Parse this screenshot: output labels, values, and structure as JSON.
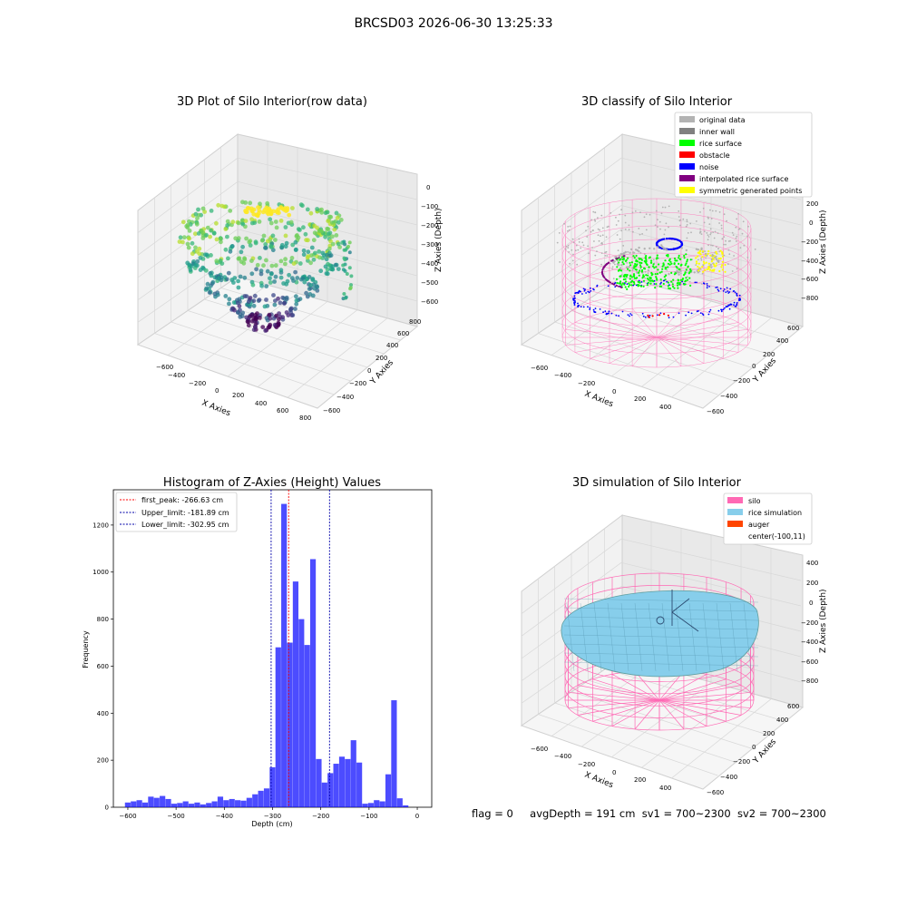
{
  "figure": {
    "suptitle": "BRCSD03 2026-06-30 13:25:33",
    "status": {
      "flag": "flag = 0",
      "avgDepth": "avgDepth = 191 cm",
      "sv1": "sv1 = 700~2300",
      "sv2": "sv2 = 700~2300"
    }
  },
  "colors": {
    "original_data": "#b3b3b3",
    "inner_wall": "#808080",
    "rice_surface": "#00ff00",
    "obstacle": "#ff0000",
    "noise": "#0000ff",
    "interpolated_rice_surface": "#800080",
    "symmetric_generated_points": "#ffff00",
    "silo": "#ff69b4",
    "rice_simulation": "#87ceeb",
    "auger": "#ff4500",
    "hist_bar": "#0000ff",
    "peak_line": "#ff0000",
    "limit_line": "#0000aa"
  },
  "chart_data": [
    {
      "type": "scatter",
      "title": "3D Plot of Silo Interior(row data)",
      "xlabel": "X Axies",
      "ylabel": "Y Axies",
      "zlabel": "Z Axies (Depth)",
      "xticks": [
        "−600",
        "−400",
        "−200",
        "0",
        "200",
        "400",
        "600",
        "800"
      ],
      "yticks": [
        "−600",
        "−400",
        "−200",
        "0",
        "200",
        "400",
        "600",
        "800"
      ],
      "zticks": [
        "0",
        "−100",
        "−200",
        "−300",
        "−400",
        "−500",
        "−600"
      ],
      "colormap": "viridis",
      "grid": true
    },
    {
      "type": "scatter",
      "title": "3D classify of Silo Interior",
      "xlabel": "X Axies",
      "ylabel": "Y Axies",
      "zlabel": "Z Axies (Depth)",
      "xticks": [
        "−600",
        "−400",
        "−200",
        "0",
        "200",
        "400"
      ],
      "yticks": [
        "−600",
        "−400",
        "−200",
        "0",
        "200",
        "400",
        "600"
      ],
      "zticks": [
        "200",
        "0",
        "−200",
        "−400",
        "−600",
        "−800"
      ],
      "legend": [
        "original data",
        "inner wall",
        "rice surface",
        "obstacle",
        "noise",
        "interpolated rice surface",
        "symmetric generated points"
      ],
      "legend_position": "top-right",
      "grid": true
    },
    {
      "type": "bar",
      "title": "Histogram of Z-Axies (Height) Values",
      "xlabel": "Depth (cm)",
      "ylabel": "Frequency",
      "xlim": [
        -630,
        30
      ],
      "ylim": [
        0,
        1350
      ],
      "xticks": [
        -600,
        -500,
        -400,
        -300,
        -200,
        -100,
        0
      ],
      "xtick_labels": [
        "−600",
        "−500",
        "−400",
        "−300",
        "−200",
        "−100",
        "0"
      ],
      "yticks": [
        0,
        200,
        400,
        600,
        800,
        1000,
        1200
      ],
      "bin_width": 12,
      "bins_start": [
        -606,
        -594,
        -582,
        -570,
        -558,
        -546,
        -534,
        -522,
        -510,
        -498,
        -486,
        -474,
        -462,
        -450,
        -438,
        -426,
        -414,
        -402,
        -390,
        -378,
        -366,
        -354,
        -342,
        -330,
        -318,
        -306,
        -294,
        -282,
        -270,
        -258,
        -246,
        -234,
        -222,
        -210,
        -198,
        -186,
        -174,
        -162,
        -150,
        -138,
        -126,
        -114,
        -102,
        -90,
        -78,
        -66,
        -54,
        -42,
        -30,
        -18,
        -6
      ],
      "values": [
        20,
        25,
        30,
        20,
        45,
        40,
        48,
        35,
        15,
        18,
        25,
        15,
        20,
        12,
        18,
        25,
        45,
        30,
        35,
        30,
        28,
        40,
        55,
        70,
        80,
        170,
        680,
        1290,
        700,
        960,
        800,
        690,
        1055,
        205,
        105,
        145,
        185,
        215,
        205,
        285,
        190,
        15,
        18,
        30,
        25,
        140,
        455,
        38,
        8,
        0,
        0
      ],
      "vlines": [
        {
          "label": "first_peak: -266.63 cm",
          "x": -266.63,
          "color": "#ff0000"
        },
        {
          "label": "Upper_limit: -181.89 cm",
          "x": -181.89,
          "color": "#0000aa"
        },
        {
          "label": "Lower_limit: -302.95 cm",
          "x": -302.95,
          "color": "#0000aa"
        }
      ],
      "legend_position": "top-left",
      "grid": false
    },
    {
      "type": "scatter",
      "title": "3D simulation of Silo Interior",
      "xlabel": "X Axies",
      "ylabel": "Y Axies",
      "zlabel": "Z Axies (Depth)",
      "xticks": [
        "−600",
        "−400",
        "−200",
        "0",
        "200",
        "400"
      ],
      "yticks": [
        "−600",
        "−400",
        "−200",
        "0",
        "200",
        "400",
        "600"
      ],
      "zticks": [
        "400",
        "200",
        "0",
        "−200",
        "−400",
        "−600",
        "−800"
      ],
      "legend": [
        "silo",
        "rice simulation",
        "auger",
        "center(-100,11)"
      ],
      "legend_position": "top-right",
      "grid": true
    }
  ]
}
